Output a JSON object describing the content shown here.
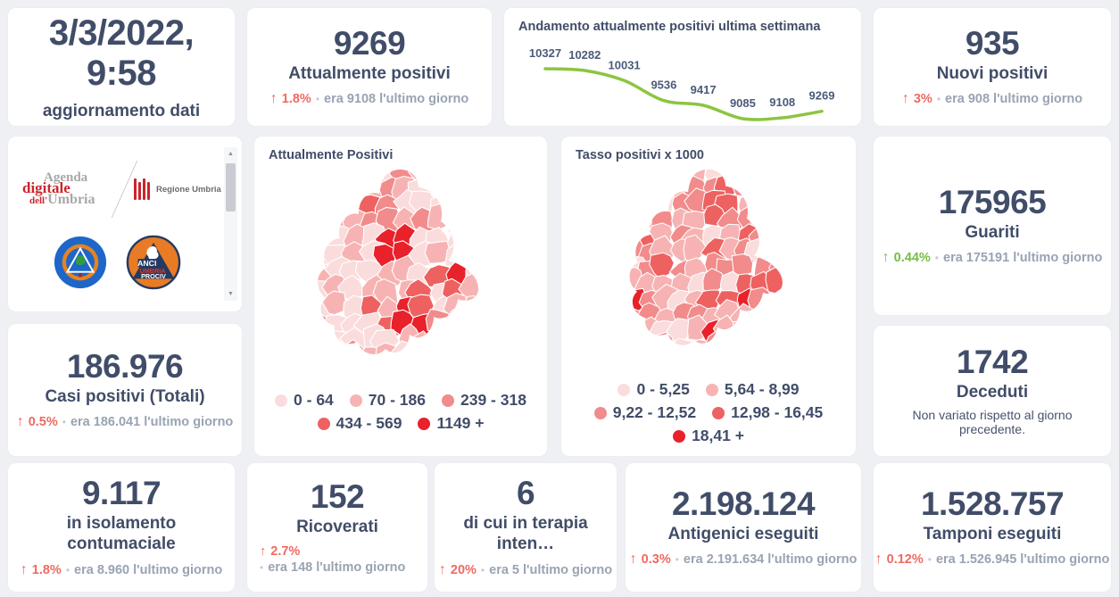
{
  "icons": {
    "up_arrow": "↑",
    "bullet": "•",
    "scroll_up": "▲",
    "scroll_down": "▼"
  },
  "colors": {
    "background": "#eef0f4",
    "card": "#ffffff",
    "number": "#414d68",
    "muted_text": "#99a3b3",
    "accent_red": "#ee6a60",
    "accent_green": "#76bd43",
    "chart_line": "#8cc540",
    "map_palette": [
      "#fbdcdc",
      "#f7b3b3",
      "#f28b8b",
      "#ee6161",
      "#e8212a"
    ]
  },
  "cards": {
    "updated": {
      "value": "3/3/2022, 9:58",
      "label": "aggiornamento dati"
    },
    "attualmente_positivi": {
      "value": "9269",
      "label": "Attualmente positivi",
      "change_pct": "1.8%",
      "previous": "era 9108  l'ultimo giorno"
    },
    "nuovi_positivi": {
      "value": "935",
      "label": "Nuovi positivi",
      "change_pct": "3%",
      "previous": "era 908  l'ultimo giorno"
    },
    "guariti": {
      "value": "175965",
      "label": "Guariti",
      "change_pct": "0.44%",
      "previous": "era 175191  l'ultimo giorno"
    },
    "casi_totali": {
      "value": "186.976",
      "label": "Casi positivi (Totali)",
      "change_pct": "0.5%",
      "previous": "era 186.041  l'ultimo giorno"
    },
    "deceduti": {
      "value": "1742",
      "label": "Deceduti",
      "note": "Non variato rispetto al giorno precedente."
    },
    "isolamento": {
      "value": "9.117",
      "label": "in isolamento contumaciale",
      "change_pct": "1.8%",
      "previous": "era 8.960  l'ultimo giorno"
    },
    "ricoverati": {
      "value": "152",
      "label": "Ricoverati",
      "change_pct": "2.7%",
      "previous": "era 148  l'ultimo giorno"
    },
    "terapia_intensiva": {
      "value": "6",
      "label": "di cui in terapia inten…",
      "change_pct": "20%",
      "previous": "era 5  l'ultimo giorno"
    },
    "antigenici": {
      "value": "2.198.124",
      "label": "Antigenici eseguiti",
      "change_pct": "0.3%",
      "previous": "era 2.191.634  l'ultimo giorno"
    },
    "tamponi": {
      "value": "1.528.757",
      "label": "Tamponi eseguiti",
      "change_pct": "0.12%",
      "previous": "era 1.526.945  l'ultimo giorno"
    }
  },
  "chart_data": {
    "type": "line",
    "title": "Andamento attualmente positivi ultima settimana",
    "values": [
      10327,
      10282,
      10031,
      9536,
      9417,
      9085,
      9108,
      9269
    ],
    "point_labels": [
      "10327",
      "10282",
      "10031",
      "9536",
      "9417",
      "9085",
      "9108",
      "9269"
    ],
    "line_color": "#8cc540",
    "label_color": "#4b5a78",
    "grid": false,
    "legend_position": "none",
    "ylim": [
      9000,
      10400
    ]
  },
  "maps": [
    {
      "title": "Attualmente Positivi",
      "legend_rows": [
        [
          {
            "label": "0 - 64",
            "color": "#fbdcdc"
          },
          {
            "label": "70 - 186",
            "color": "#f7b3b3"
          },
          {
            "label": "239 - 318",
            "color": "#f28b8b"
          }
        ],
        [
          {
            "label": "434 - 569",
            "color": "#ee6161"
          },
          {
            "label": "1149 +",
            "color": "#e8212a"
          }
        ]
      ]
    },
    {
      "title": "Tasso positivi x 1000",
      "legend_rows": [
        [
          {
            "label": "0 - 5,25",
            "color": "#fbdcdc"
          },
          {
            "label": "5,64 - 8,99",
            "color": "#f7b3b3"
          }
        ],
        [
          {
            "label": "9,22 - 12,52",
            "color": "#f28b8b"
          },
          {
            "label": "12,98 - 16,45",
            "color": "#ee6161"
          }
        ],
        [
          {
            "label": "18,41 +",
            "color": "#e8212a"
          }
        ]
      ]
    }
  ],
  "logos": {
    "agenda_line1": "Agenda",
    "agenda_line2": "digitale",
    "agenda_line3_red": "dell'",
    "agenda_line3_gray": "Umbria",
    "regione_label": "Regione Umbria",
    "prociv_anci_line1": "ANCI",
    "prociv_anci_line2": "UMBRIA",
    "prociv_anci_line3": "PROCIV"
  }
}
